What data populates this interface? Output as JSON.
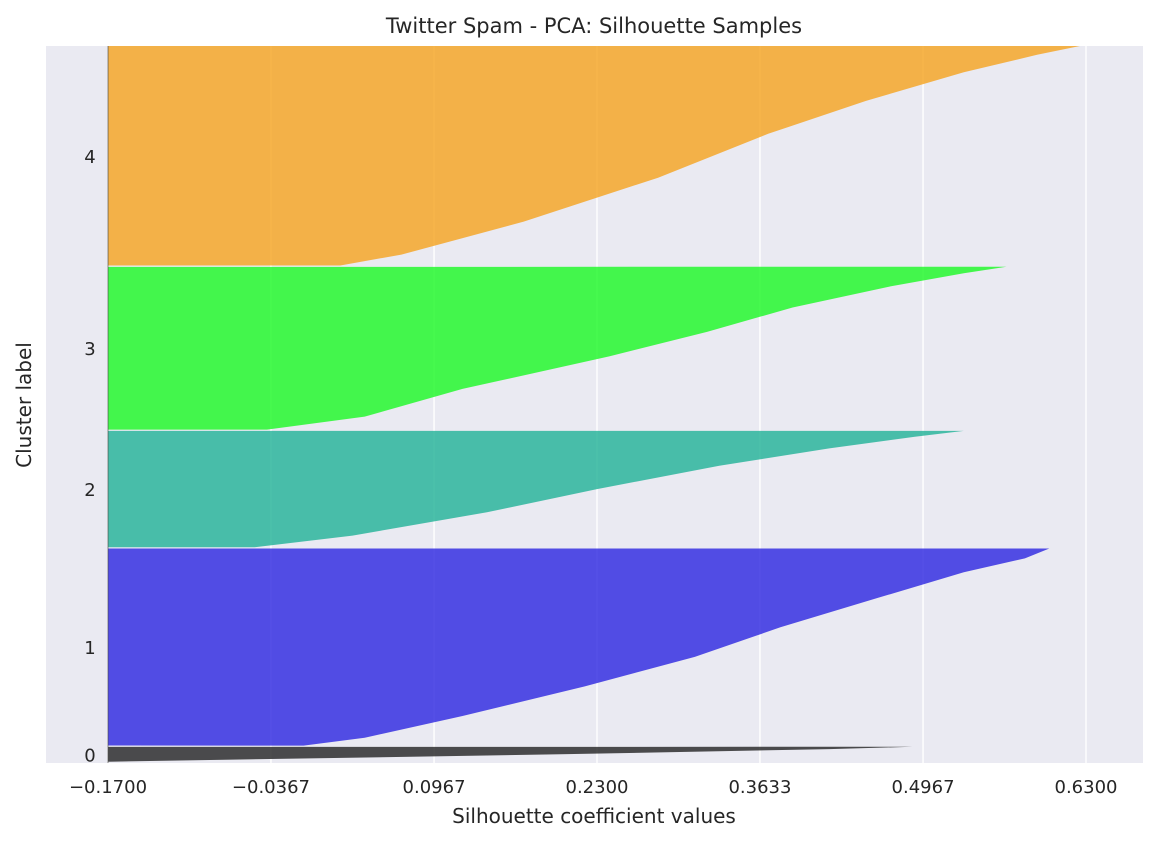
{
  "chart_data": {
    "type": "area",
    "title": "Twitter Spam - PCA: Silhouette Samples",
    "xlabel": "Silhouette coefficient values",
    "ylabel": "Cluster label",
    "xlim": [
      -0.17,
      0.67
    ],
    "ylim": [
      0,
      5549
    ],
    "xticks": [
      -0.17,
      -0.0367,
      0.0967,
      0.23,
      0.3633,
      0.4967,
      0.63
    ],
    "xtick_labels": [
      "−0.1700",
      "−0.0367",
      "0.0967",
      "0.2300",
      "0.3633",
      "0.4967",
      "0.6300"
    ],
    "grid": true,
    "legend": "none",
    "clusters": [
      {
        "label": "0",
        "color": "#222222",
        "y_start": 10,
        "y_end": 125,
        "values": [
          [
            0,
            -0.17
          ],
          [
            0.5,
            0.2
          ],
          [
            0.85,
            0.42
          ],
          [
            1,
            0.488
          ]
        ]
      },
      {
        "label": "1",
        "color": "#2b24e0",
        "y_start": 135,
        "y_end": 1660,
        "values": [
          [
            0,
            -0.01
          ],
          [
            0.04,
            0.04
          ],
          [
            0.15,
            0.12
          ],
          [
            0.3,
            0.22
          ],
          [
            0.45,
            0.31
          ],
          [
            0.6,
            0.38
          ],
          [
            0.75,
            0.46
          ],
          [
            0.88,
            0.53
          ],
          [
            0.95,
            0.58
          ],
          [
            1,
            0.6
          ]
        ]
      },
      {
        "label": "2",
        "color": "#1fb296",
        "y_start": 1670,
        "y_end": 2570,
        "values": [
          [
            0,
            -0.05
          ],
          [
            0.1,
            0.03
          ],
          [
            0.3,
            0.14
          ],
          [
            0.5,
            0.23
          ],
          [
            0.7,
            0.33
          ],
          [
            0.85,
            0.42
          ],
          [
            0.95,
            0.49
          ],
          [
            1,
            0.53
          ]
        ]
      },
      {
        "label": "3",
        "color": "#19f922",
        "y_start": 2580,
        "y_end": 3840,
        "values": [
          [
            0,
            -0.04
          ],
          [
            0.08,
            0.04
          ],
          [
            0.25,
            0.12
          ],
          [
            0.45,
            0.24
          ],
          [
            0.6,
            0.32
          ],
          [
            0.75,
            0.39
          ],
          [
            0.88,
            0.47
          ],
          [
            0.96,
            0.53
          ],
          [
            1,
            0.565
          ]
        ]
      },
      {
        "label": "4",
        "color": "#f5a21d",
        "y_start": 3850,
        "y_end": 5549,
        "values": [
          [
            0,
            0.02
          ],
          [
            0.05,
            0.07
          ],
          [
            0.2,
            0.17
          ],
          [
            0.4,
            0.28
          ],
          [
            0.6,
            0.37
          ],
          [
            0.75,
            0.45
          ],
          [
            0.88,
            0.53
          ],
          [
            0.96,
            0.59
          ],
          [
            1,
            0.625
          ]
        ]
      }
    ]
  }
}
